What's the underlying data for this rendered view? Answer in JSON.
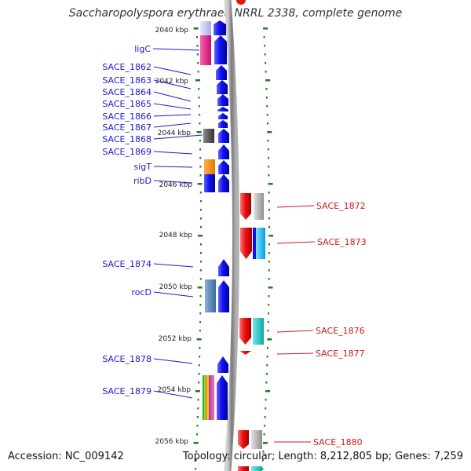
{
  "title": "Saccharopolyspora erythraea NRRL 2338, complete genome",
  "footer": {
    "accession": "Accession: NC_009142",
    "summary": "Topology: circular; Length: 8,212,805 bp; Genes: 7,259"
  },
  "colors": {
    "forward": "#1010ee",
    "reverse": "#ee1111",
    "forward_label": "#1a1acc",
    "reverse_label": "#cc1a1a",
    "backbone": "#8a8a8a",
    "tick": "#1e7a1e"
  },
  "scale_labels": [
    "2040 kbp",
    "2042 kbp",
    "2044 kbp",
    "2046 kbp",
    "2048 kbp",
    "2050 kbp",
    "2052 kbp",
    "2054 kbp",
    "2056 kbp"
  ],
  "forward_genes": [
    {
      "name": "",
      "color": "#1010ee",
      "cog": "#c8c8f0"
    },
    {
      "name": "ligC",
      "color": "#1010ee",
      "cog": "#e0208a"
    },
    {
      "name": "SACE_1862",
      "color": "#1010ee",
      "cog": ""
    },
    {
      "name": "SACE_1863",
      "color": "#1010ee",
      "cog": ""
    },
    {
      "name": "SACE_1864",
      "color": "#1010ee",
      "cog": ""
    },
    {
      "name": "SACE_1865",
      "color": "#1010ee",
      "cog": ""
    },
    {
      "name": "SACE_1866",
      "color": "#1010ee",
      "cog": ""
    },
    {
      "name": "SACE_1867",
      "color": "#1010ee",
      "cog": ""
    },
    {
      "name": "SACE_1868",
      "color": "#1010ee",
      "cog": "#555555"
    },
    {
      "name": "SACE_1869",
      "color": "#1010ee",
      "cog": ""
    },
    {
      "name": "sigT",
      "color": "#1010ee",
      "cog": "#f08c10"
    },
    {
      "name": "ribD",
      "color": "#1010ee",
      "cog": "#1010ee"
    },
    {
      "name": "SACE_1874",
      "color": "#1010ee",
      "cog": ""
    },
    {
      "name": "rocD",
      "color": "#1010ee",
      "cog": "#4682b4"
    },
    {
      "name": "SACE_1878",
      "color": "#1010ee",
      "cog": ""
    },
    {
      "name": "SACE_1879",
      "color": "#1010ee",
      "cog": "multi"
    }
  ],
  "reverse_genes": [
    {
      "name": "SACE_1872",
      "color": "#ee1111",
      "cog": "#aaaaaa"
    },
    {
      "name": "SACE_1873",
      "color": "#ee1111",
      "cog": "#00bfff"
    },
    {
      "name": "SACE_1876",
      "color": "#ee1111",
      "cog": "#20c8c8"
    },
    {
      "name": "SACE_1877",
      "color": "#ee1111",
      "cog": ""
    },
    {
      "name": "SACE_1880",
      "color": "#ee1111",
      "cog": "#aaaaaa"
    }
  ]
}
